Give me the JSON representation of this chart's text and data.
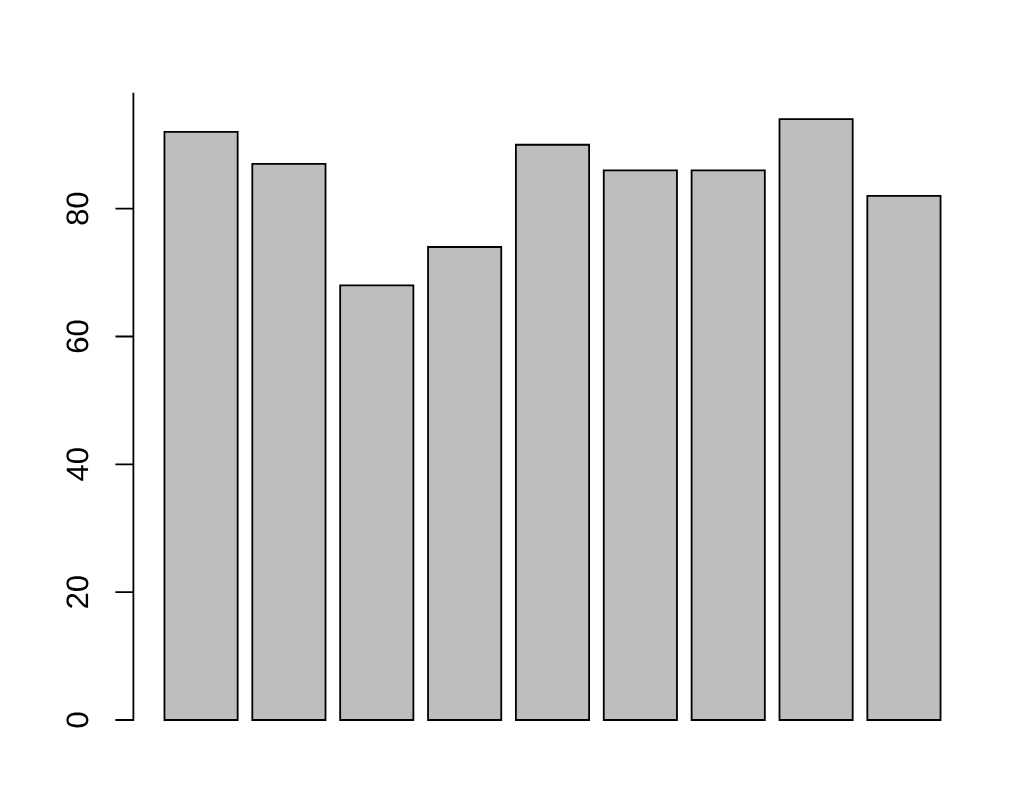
{
  "chart_data": {
    "type": "bar",
    "categories": [
      null,
      null,
      null,
      null,
      null,
      null,
      null,
      null,
      null
    ],
    "values": [
      92,
      87,
      68,
      74,
      90,
      86,
      86,
      94,
      82
    ],
    "color": "#bebebe",
    "ylim": [
      0,
      98
    ],
    "yticks": [
      0,
      20,
      40,
      60,
      80
    ]
  }
}
